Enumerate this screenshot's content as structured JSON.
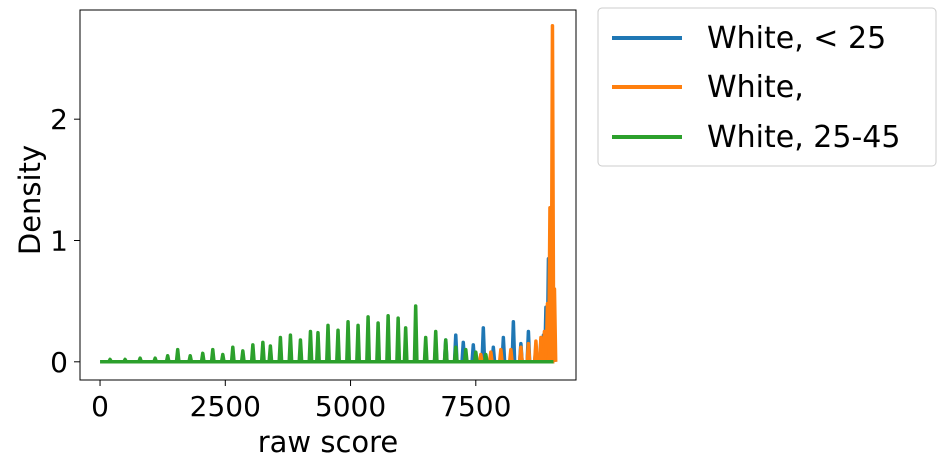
{
  "chart_data": {
    "type": "line",
    "xlabel": "raw score",
    "ylabel": "Density",
    "xlim": [
      -400,
      9500
    ],
    "ylim": [
      -0.15,
      2.9
    ],
    "xticks": [
      0,
      2500,
      5000,
      7500
    ],
    "xtick_labels": [
      "0",
      "2500",
      "5000",
      "7500"
    ],
    "yticks": [
      0,
      1,
      2
    ],
    "ytick_labels": [
      "0",
      "1",
      "2"
    ],
    "grid": false,
    "legend_position": "outside-top-right",
    "series": [
      {
        "name": "White, < 25",
        "color": "#1f77b4",
        "spike_x": [
          6700,
          6900,
          7100,
          7250,
          7450,
          7650,
          7850,
          8050,
          8250,
          8400,
          8550,
          8700,
          8800,
          8850,
          8900,
          8950,
          9000,
          9050
        ],
        "spike_y": [
          0.13,
          0.18,
          0.22,
          0.16,
          0.14,
          0.28,
          0.12,
          0.2,
          0.33,
          0.15,
          0.25,
          0.12,
          0.18,
          0.22,
          0.45,
          0.85,
          1.1,
          0.3
        ]
      },
      {
        "name": "White,",
        "color": "#ff7f0e",
        "spike_x": [
          7600,
          7800,
          8000,
          8200,
          8400,
          8550,
          8700,
          8800,
          8870,
          8930,
          8980,
          9030,
          9070
        ],
        "spike_y": [
          0.06,
          0.08,
          0.1,
          0.1,
          0.12,
          0.15,
          0.17,
          0.2,
          0.25,
          0.48,
          1.27,
          2.77,
          0.6
        ]
      },
      {
        "name": "White, 25-45",
        "color": "#2ca02c",
        "spike_x": [
          200,
          500,
          800,
          1100,
          1350,
          1550,
          1800,
          2050,
          2250,
          2450,
          2650,
          2850,
          3050,
          3250,
          3400,
          3600,
          3800,
          4000,
          4200,
          4350,
          4550,
          4750,
          4950,
          5150,
          5350,
          5550,
          5750,
          5950,
          6100,
          6300,
          6500,
          6700,
          6900,
          7100,
          7300,
          7500,
          7700
        ],
        "spike_y": [
          0.02,
          0.02,
          0.03,
          0.03,
          0.05,
          0.1,
          0.05,
          0.07,
          0.1,
          0.06,
          0.12,
          0.09,
          0.14,
          0.16,
          0.13,
          0.2,
          0.22,
          0.18,
          0.25,
          0.24,
          0.3,
          0.26,
          0.33,
          0.3,
          0.37,
          0.32,
          0.38,
          0.36,
          0.28,
          0.46,
          0.2,
          0.25,
          0.18,
          0.12,
          0.1,
          0.08,
          0.06
        ]
      }
    ]
  }
}
